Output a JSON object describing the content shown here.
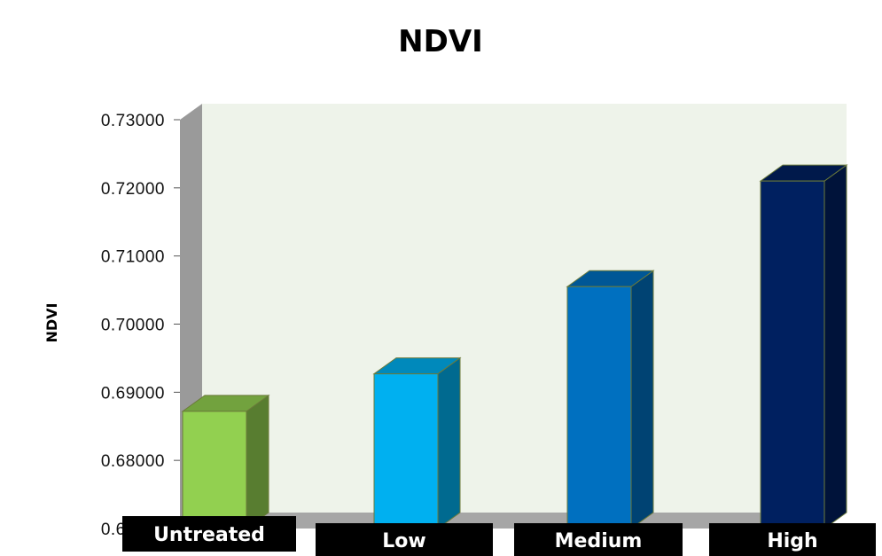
{
  "chart_data": {
    "type": "bar",
    "title": "NDVI",
    "ylabel": "NDVI",
    "xlabel": "",
    "categories": [
      "Untreated",
      "Low",
      "Medium",
      "High"
    ],
    "values": [
      0.6872,
      0.6927,
      0.7055,
      0.721
    ],
    "ylim": [
      0.67,
      0.73
    ],
    "yticks": [
      "0.67000",
      "0.68000",
      "0.69000",
      "0.70000",
      "0.71000",
      "0.72000",
      "0.73000"
    ],
    "grid": false,
    "legend": "none",
    "colors": {
      "bars": [
        "#92d050",
        "#00b0f0",
        "#0070c0",
        "#002060"
      ],
      "plot_background": "#eef3ea",
      "wall": "#9a9a9a",
      "floor": "#a6a6a6",
      "category_label_background": "#000000"
    }
  }
}
